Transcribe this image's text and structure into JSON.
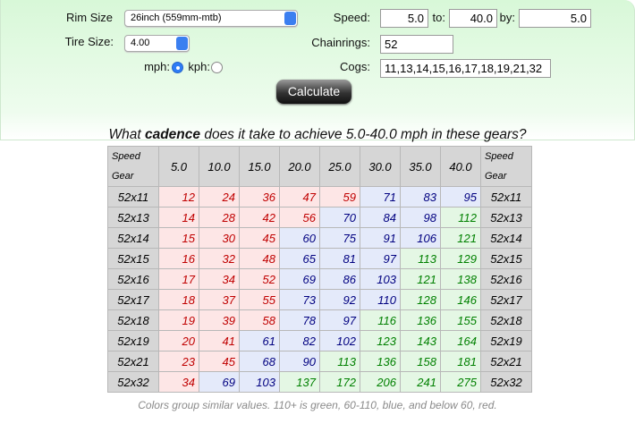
{
  "form": {
    "rim_size_label": "Rim Size",
    "rim_size": "26inch (559mm-mtb)",
    "tire_size_label": "Tire Size:",
    "tire_size": "4.00",
    "mph_label": "mph:",
    "kph_label": "kph:",
    "speed_label": "Speed:",
    "speed_from": "5.0",
    "to_label": "to:",
    "speed_to": "40.0",
    "by_label": "by:",
    "speed_by": "5.0",
    "chainrings_label": "Chainrings:",
    "chainrings": "52",
    "cogs_label": "Cogs:",
    "cogs": "11,13,14,15,16,17,18,19,21,32",
    "button": "Calculate"
  },
  "question": {
    "before": "What ",
    "emphasis": "cadence",
    "after": " does it take to achieve 5.0-40.0 mph in these gears?"
  },
  "palette": {
    "red": {
      "bg": "#fde6e6",
      "fg": "#c00000"
    },
    "blue": {
      "bg": "#e4eafa",
      "fg": "#000080"
    },
    "green": {
      "bg": "#e4f7e4",
      "fg": "#008000"
    }
  },
  "table": {
    "corner_top": "Speed",
    "corner_bottom": "Gear",
    "speeds": [
      "5.0",
      "10.0",
      "15.0",
      "20.0",
      "25.0",
      "30.0",
      "35.0",
      "40.0"
    ],
    "rows": [
      {
        "gear": "52x11",
        "cells": [
          12,
          24,
          36,
          47,
          59,
          71,
          83,
          95
        ],
        "groups": [
          "red",
          "red",
          "red",
          "red",
          "red",
          "blue",
          "blue",
          "blue"
        ]
      },
      {
        "gear": "52x13",
        "cells": [
          14,
          28,
          42,
          56,
          70,
          84,
          98,
          112
        ],
        "groups": [
          "red",
          "red",
          "red",
          "red",
          "blue",
          "blue",
          "blue",
          "green"
        ]
      },
      {
        "gear": "52x14",
        "cells": [
          15,
          30,
          45,
          60,
          75,
          91,
          106,
          121
        ],
        "groups": [
          "red",
          "red",
          "red",
          "blue",
          "blue",
          "blue",
          "blue",
          "green"
        ]
      },
      {
        "gear": "52x15",
        "cells": [
          16,
          32,
          48,
          65,
          81,
          97,
          113,
          129
        ],
        "groups": [
          "red",
          "red",
          "red",
          "blue",
          "blue",
          "blue",
          "green",
          "green"
        ]
      },
      {
        "gear": "52x16",
        "cells": [
          17,
          34,
          52,
          69,
          86,
          103,
          121,
          138
        ],
        "groups": [
          "red",
          "red",
          "red",
          "blue",
          "blue",
          "blue",
          "green",
          "green"
        ]
      },
      {
        "gear": "52x17",
        "cells": [
          18,
          37,
          55,
          73,
          92,
          110,
          128,
          146
        ],
        "groups": [
          "red",
          "red",
          "red",
          "blue",
          "blue",
          "blue",
          "green",
          "green"
        ]
      },
      {
        "gear": "52x18",
        "cells": [
          19,
          39,
          58,
          78,
          97,
          116,
          136,
          155
        ],
        "groups": [
          "red",
          "red",
          "red",
          "blue",
          "blue",
          "green",
          "green",
          "green"
        ]
      },
      {
        "gear": "52x19",
        "cells": [
          20,
          41,
          61,
          82,
          102,
          123,
          143,
          164
        ],
        "groups": [
          "red",
          "red",
          "blue",
          "blue",
          "blue",
          "green",
          "green",
          "green"
        ]
      },
      {
        "gear": "52x21",
        "cells": [
          23,
          45,
          68,
          90,
          113,
          136,
          158,
          181
        ],
        "groups": [
          "red",
          "red",
          "blue",
          "blue",
          "green",
          "green",
          "green",
          "green"
        ]
      },
      {
        "gear": "52x32",
        "cells": [
          34,
          69,
          103,
          137,
          172,
          206,
          241,
          275
        ],
        "groups": [
          "red",
          "blue",
          "blue",
          "green",
          "green",
          "green",
          "green",
          "green"
        ]
      }
    ]
  },
  "caption": "Colors group similar values. 110+ is green, 60-110, blue, and below 60, red."
}
